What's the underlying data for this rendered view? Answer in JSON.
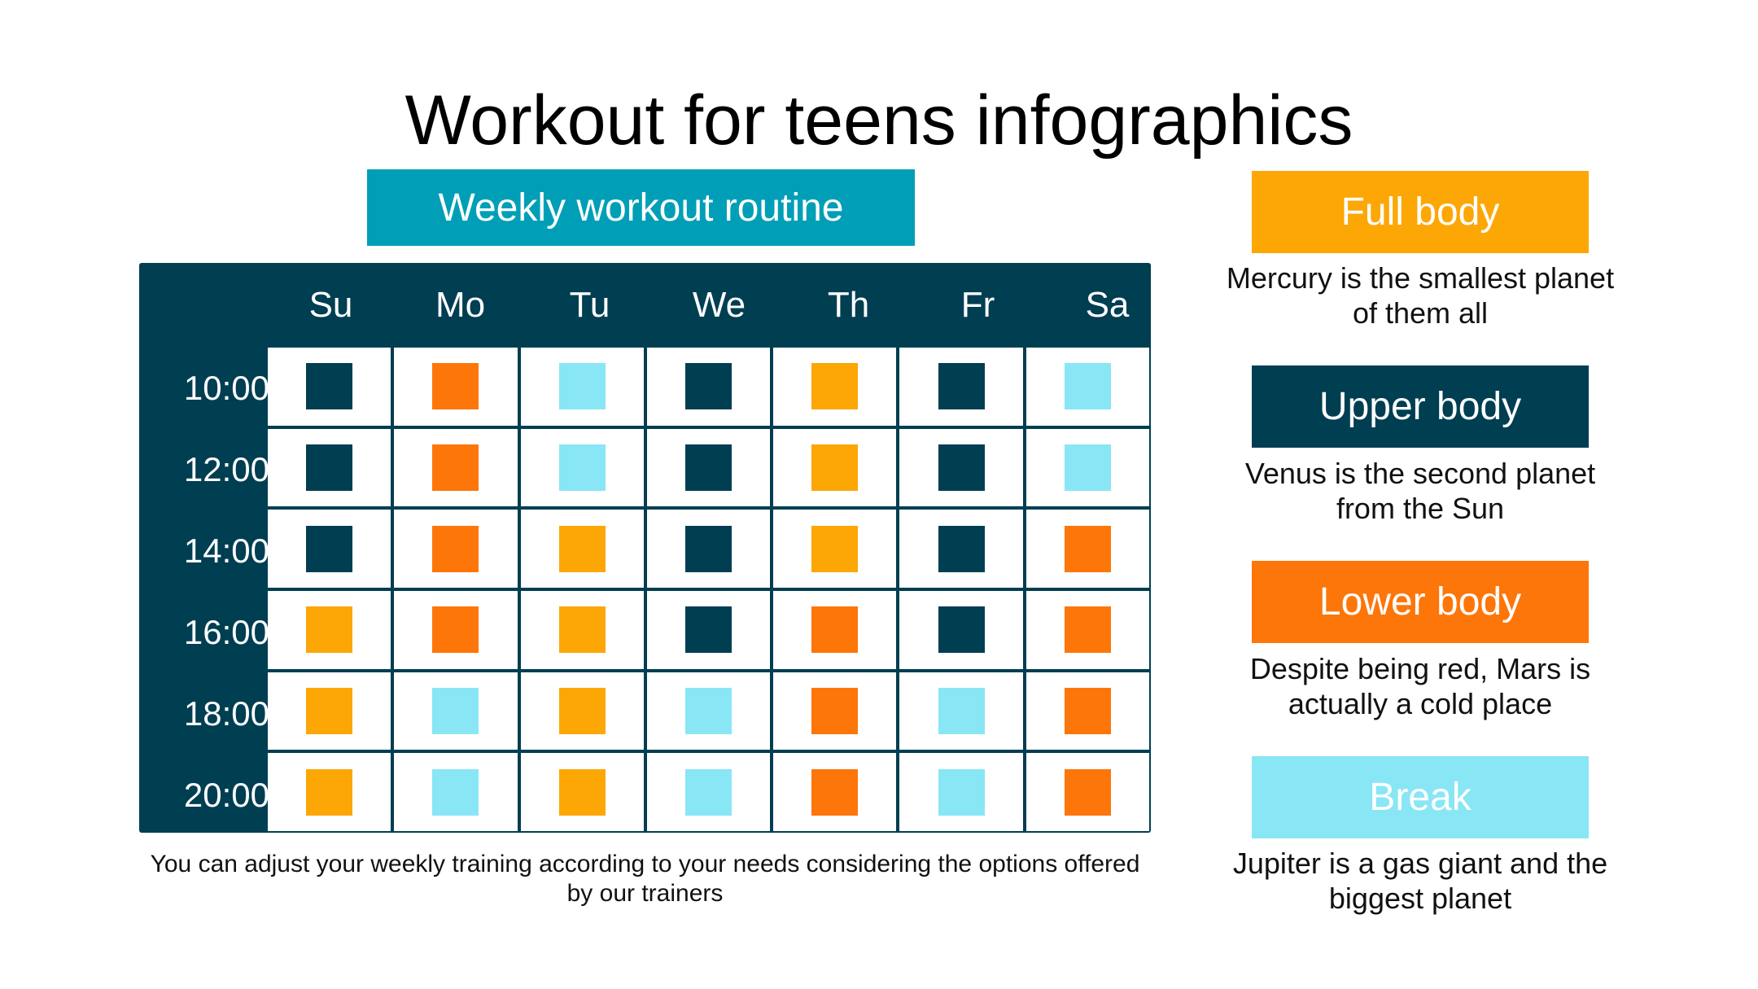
{
  "title": "Workout for teens infographics",
  "routine_header": "Weekly workout routine",
  "days": [
    "Su",
    "Mo",
    "Tu",
    "We",
    "Th",
    "Fr",
    "Sa"
  ],
  "times": [
    "10:00",
    "12:00",
    "14:00",
    "16:00",
    "18:00",
    "20:00"
  ],
  "schedule": [
    [
      "upper",
      "lower",
      "break",
      "upper",
      "full",
      "upper",
      "break"
    ],
    [
      "upper",
      "lower",
      "break",
      "upper",
      "full",
      "upper",
      "break"
    ],
    [
      "upper",
      "lower",
      "full",
      "upper",
      "full",
      "upper",
      "lower"
    ],
    [
      "full",
      "lower",
      "full",
      "upper",
      "lower",
      "upper",
      "lower"
    ],
    [
      "full",
      "break",
      "full",
      "break",
      "lower",
      "break",
      "lower"
    ],
    [
      "full",
      "break",
      "full",
      "break",
      "lower",
      "break",
      "lower"
    ]
  ],
  "colors": {
    "full": "#fca706",
    "upper": "#003e52",
    "lower": "#fd7609",
    "break": "#89e6f5",
    "routine_header": "#009fb7",
    "schedule_bg": "#003e52"
  },
  "legend": [
    {
      "key": "full",
      "label": "Full body",
      "description": "Mercury is the smallest planet of them all"
    },
    {
      "key": "upper",
      "label": "Upper body",
      "description": "Venus is the second planet from the Sun"
    },
    {
      "key": "lower",
      "label": "Lower body",
      "description": "Despite being red, Mars is actually a cold place"
    },
    {
      "key": "break",
      "label": "Break",
      "description": "Jupiter is a gas giant and the biggest planet"
    }
  ],
  "footnote": "You can adjust your weekly training according to your needs considering the options offered by our trainers"
}
